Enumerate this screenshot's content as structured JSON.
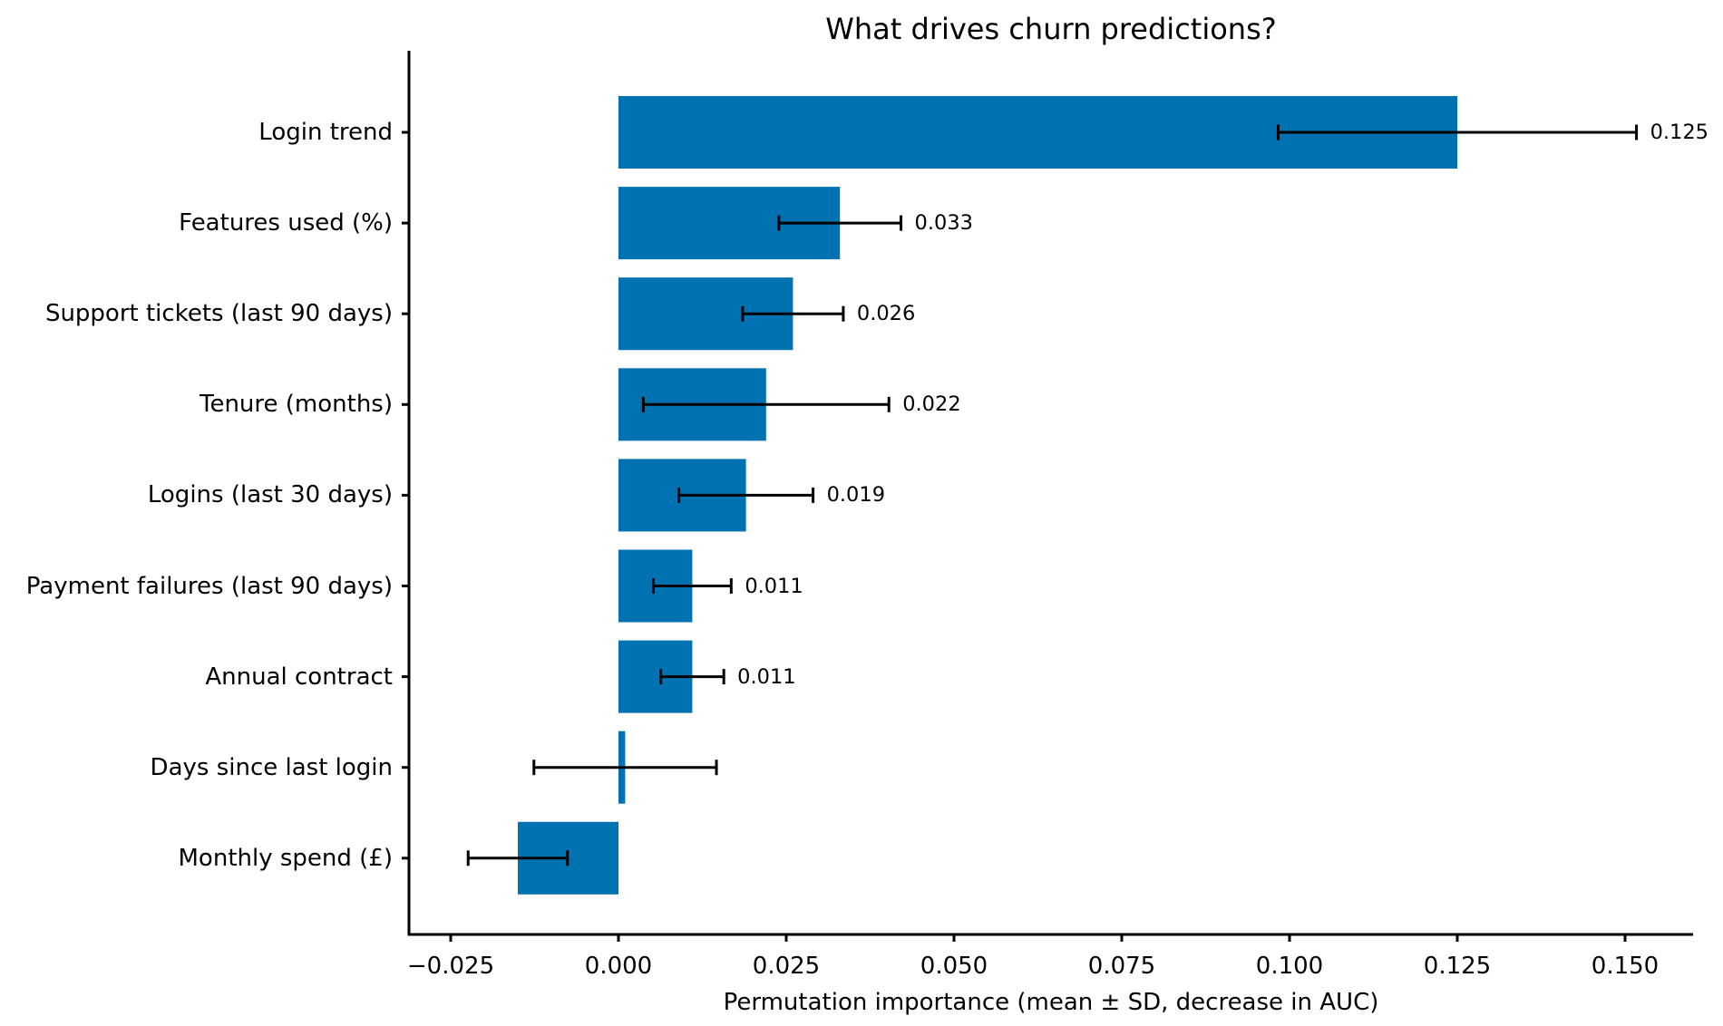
{
  "chart_data": {
    "type": "bar",
    "orientation": "horizontal",
    "title": "What drives churn predictions?",
    "xlabel": "Permutation importance (mean ± SD, decrease in AUC)",
    "ylabel": "",
    "xlim": [
      -0.0312,
      0.1602
    ],
    "xticks": [
      -0.025,
      0.0,
      0.025,
      0.05,
      0.075,
      0.1,
      0.125,
      0.15
    ],
    "xtick_labels": [
      "−0.025",
      "0.000",
      "0.025",
      "0.050",
      "0.075",
      "0.100",
      "0.125",
      "0.150"
    ],
    "grid": false,
    "legend": null,
    "bar_color": "#0072B2",
    "errorbar_color": "#000000",
    "categories": [
      "Login trend",
      "Features used (%)",
      "Support tickets (last 90 days)",
      "Tenure (months)",
      "Logins (last 30 days)",
      "Payment failures (last 90 days)",
      "Annual contract",
      "Days since last login",
      "Monthly spend (£)"
    ],
    "values": [
      0.125,
      0.033,
      0.026,
      0.022,
      0.019,
      0.011,
      0.011,
      0.001,
      -0.015
    ],
    "errors_sd": [
      0.0267,
      0.0091,
      0.0075,
      0.0183,
      0.01,
      0.0058,
      0.0047,
      0.0136,
      0.0074
    ],
    "value_labels": [
      "0.125",
      "0.033",
      "0.026",
      "0.022",
      "0.019",
      "0.011",
      "0.011",
      "",
      ""
    ]
  }
}
